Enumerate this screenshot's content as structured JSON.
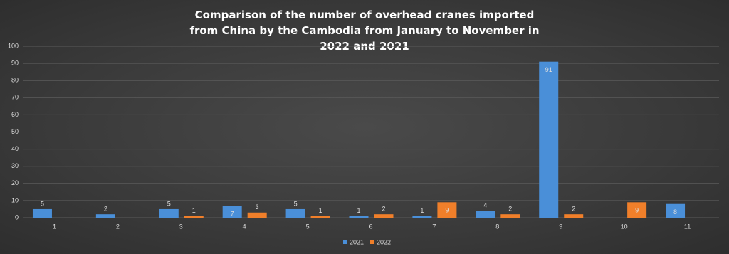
{
  "chart_data": {
    "type": "bar",
    "title": "Comparison of the number of overhead cranes imported from China by the Cambodia from January to November in 2022 and 2021",
    "categories": [
      "1",
      "2",
      "3",
      "4",
      "5",
      "6",
      "7",
      "8",
      "9",
      "10",
      "11"
    ],
    "series": [
      {
        "name": "2021",
        "color": "#4a8fd8",
        "values": [
          5,
          2,
          5,
          7,
          5,
          1,
          1,
          4,
          91,
          null,
          8
        ]
      },
      {
        "name": "2022",
        "color": "#f07f2a",
        "values": [
          null,
          null,
          1,
          3,
          1,
          2,
          9,
          2,
          2,
          9,
          null
        ]
      }
    ],
    "ylim": [
      0,
      100
    ],
    "yticks": [
      0,
      10,
      20,
      30,
      40,
      50,
      60,
      70,
      80,
      90,
      100
    ],
    "grid": true,
    "legend": "bottom"
  }
}
